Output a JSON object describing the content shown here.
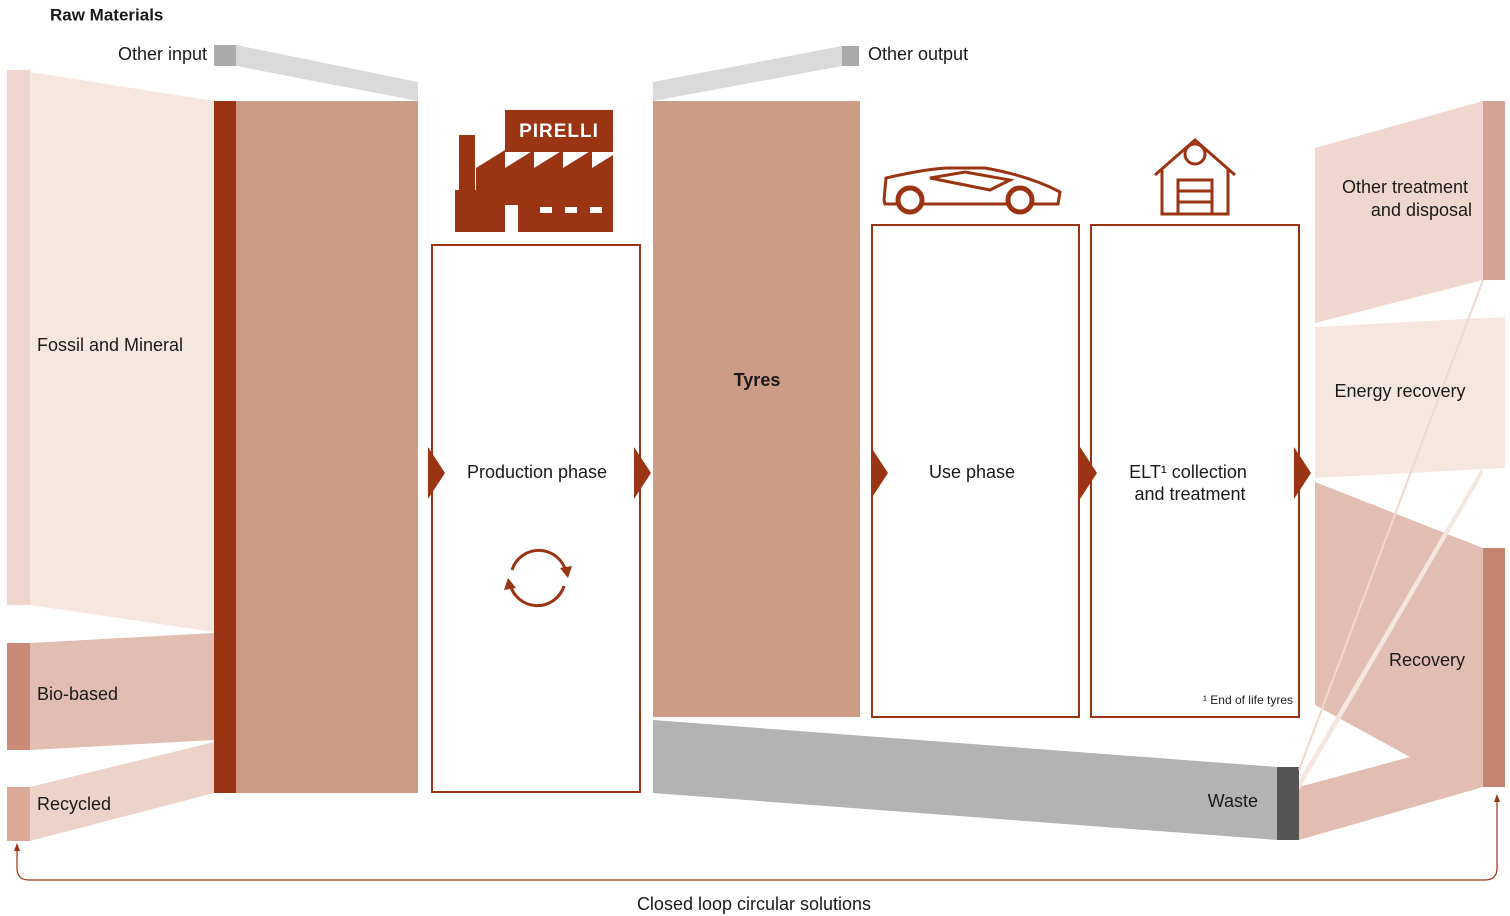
{
  "raw_materials": {
    "title": "Raw Materials",
    "other": "Other input",
    "sources": [
      "Fossil and Mineral",
      "Bio-based",
      "Recycled"
    ]
  },
  "stages": {
    "production": "Production phase",
    "product": "Tyres",
    "use": "Use phase",
    "elt": [
      "ELT¹ collection",
      "and treatment"
    ],
    "footnote": "¹ End of life tyres"
  },
  "outputs": {
    "other": "Other output",
    "waste": "Waste",
    "destinations": [
      [
        "Other treatment",
        "and disposal"
      ],
      [
        "Energy recovery"
      ],
      [
        "Recovery"
      ]
    ]
  },
  "loop": "Closed loop circular solutions",
  "logo": "PIRELLI"
}
